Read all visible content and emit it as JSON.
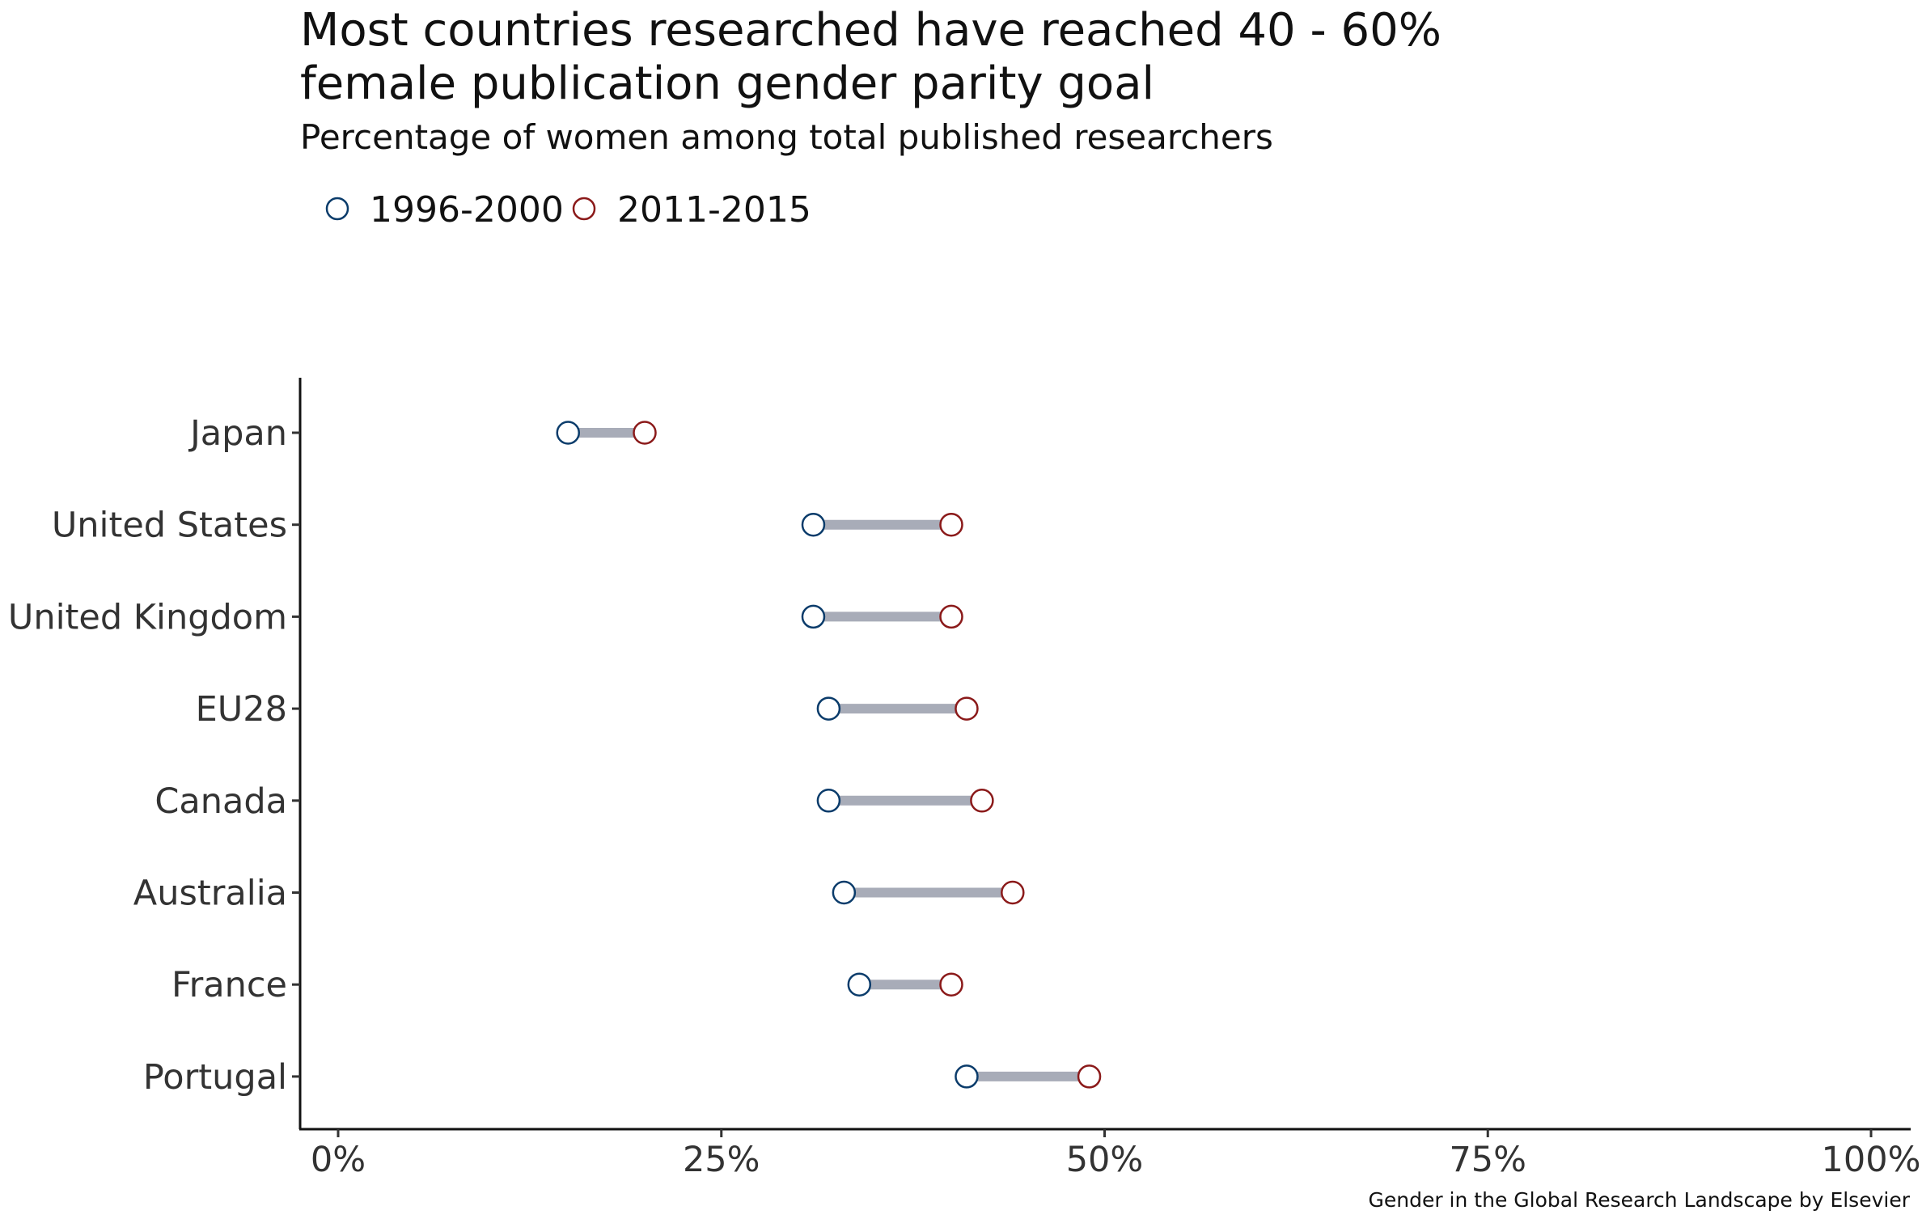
{
  "chart_data": {
    "type": "dumbbell",
    "title_lines": [
      "Most countries researched have reached 40 - 60%",
      "female publication gender parity goal"
    ],
    "subtitle": "Percentage of women among total published researchers",
    "caption": "Gender in the Global Research Landscape by Elsevier",
    "legend": {
      "position": "top-left",
      "items": [
        {
          "label": "1996-2000",
          "color": "#0b3c6b"
        },
        {
          "label": "2011-2015",
          "color": "#8b1a1a"
        }
      ]
    },
    "x_axis": {
      "lim": [
        0,
        100
      ],
      "ticks": [
        0,
        25,
        50,
        75,
        100
      ],
      "tick_labels": [
        "0%",
        "25%",
        "50%",
        "75%",
        "100%"
      ]
    },
    "categories": [
      "Japan",
      "United States",
      "United Kingdom",
      "EU28",
      "Canada",
      "Australia",
      "France",
      "Portugal"
    ],
    "series": [
      {
        "name": "1996-2000",
        "values": [
          15,
          31,
          31,
          32,
          32,
          33,
          34,
          41
        ]
      },
      {
        "name": "2011-2015",
        "values": [
          20,
          40,
          40,
          41,
          42,
          44,
          40,
          49
        ]
      }
    ],
    "segment_color": "#a8acb8",
    "grid": false
  }
}
